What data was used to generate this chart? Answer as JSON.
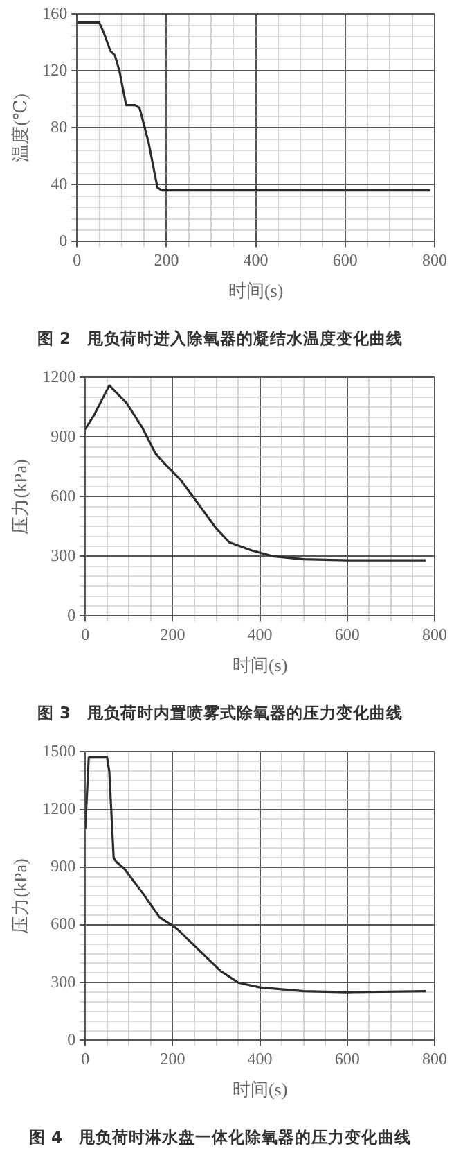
{
  "chart_data": [
    {
      "type": "line",
      "title": "图 2　甩负荷时进入除氧器的凝结水温度变化曲线",
      "xlabel": "时间(s)",
      "ylabel": "温度(℃)",
      "xlim": [
        0,
        800
      ],
      "ylim": [
        0,
        160
      ],
      "grid": true,
      "legend": false,
      "marker": "none",
      "line_style": "solid",
      "xticks": [
        0,
        {
          "value": 50,
          "label": null
        },
        {
          "value": 100,
          "label": null
        },
        {
          "value": 150,
          "label": null
        },
        200,
        {
          "value": 250,
          "label": null
        },
        {
          "value": 300,
          "label": null
        },
        {
          "value": 350,
          "label": null
        },
        400,
        {
          "value": 450,
          "label": null
        },
        {
          "value": 500,
          "label": null
        },
        {
          "value": 550,
          "label": null
        },
        600,
        {
          "value": 650,
          "label": null
        },
        {
          "value": 700,
          "label": null
        },
        {
          "value": 750,
          "label": null
        },
        800
      ],
      "yticks": [
        0,
        {
          "value": 8,
          "label": null
        },
        {
          "value": 16,
          "label": null
        },
        {
          "value": 24,
          "label": null
        },
        {
          "value": 32,
          "label": null
        },
        40,
        {
          "value": 48,
          "label": null
        },
        {
          "value": 56,
          "label": null
        },
        {
          "value": 64,
          "label": null
        },
        {
          "value": 72,
          "label": null
        },
        80,
        {
          "value": 88,
          "label": null
        },
        {
          "value": 96,
          "label": null
        },
        {
          "value": 104,
          "label": null
        },
        {
          "value": 112,
          "label": null
        },
        120,
        {
          "value": 128,
          "label": null
        },
        {
          "value": 136,
          "label": null
        },
        {
          "value": 144,
          "label": null
        },
        {
          "value": 152,
          "label": null
        },
        160
      ],
      "series": [
        {
          "color": "#2b2b2b",
          "x": [
            0,
            50,
            60,
            75,
            85,
            95,
            110,
            130,
            140,
            160,
            180,
            190,
            790
          ],
          "values": [
            154,
            154,
            147,
            134,
            131,
            120,
            96,
            96,
            94,
            70,
            38,
            36,
            36
          ]
        }
      ]
    },
    {
      "type": "line",
      "title": "图 3　甩负荷时内置喷雾式除氧器的压力变化曲线",
      "xlabel": "时间(s)",
      "ylabel": "压力(kPa)",
      "xlim": [
        0,
        800
      ],
      "ylim": [
        0,
        1200
      ],
      "grid": true,
      "legend": false,
      "marker": "none",
      "line_style": "solid",
      "xticks": [
        0,
        {
          "value": 50,
          "label": null
        },
        {
          "value": 100,
          "label": null
        },
        {
          "value": 150,
          "label": null
        },
        200,
        {
          "value": 250,
          "label": null
        },
        {
          "value": 300,
          "label": null
        },
        {
          "value": 350,
          "label": null
        },
        400,
        {
          "value": 450,
          "label": null
        },
        {
          "value": 500,
          "label": null
        },
        {
          "value": 550,
          "label": null
        },
        600,
        {
          "value": 650,
          "label": null
        },
        {
          "value": 700,
          "label": null
        },
        {
          "value": 750,
          "label": null
        },
        800
      ],
      "yticks": [
        0,
        {
          "value": 50,
          "label": null
        },
        {
          "value": 100,
          "label": null
        },
        {
          "value": 150,
          "label": null
        },
        {
          "value": 200,
          "label": null
        },
        {
          "value": 250,
          "label": null
        },
        300,
        {
          "value": 350,
          "label": null
        },
        {
          "value": 400,
          "label": null
        },
        {
          "value": 450,
          "label": null
        },
        {
          "value": 500,
          "label": null
        },
        {
          "value": 550,
          "label": null
        },
        600,
        {
          "value": 650,
          "label": null
        },
        {
          "value": 700,
          "label": null
        },
        {
          "value": 750,
          "label": null
        },
        {
          "value": 800,
          "label": null
        },
        {
          "value": 850,
          "label": null
        },
        900,
        {
          "value": 950,
          "label": null
        },
        {
          "value": 1000,
          "label": null
        },
        {
          "value": 1050,
          "label": null
        },
        {
          "value": 1100,
          "label": null
        },
        {
          "value": 1150,
          "label": null
        },
        1200
      ],
      "series": [
        {
          "color": "#2b2b2b",
          "x": [
            0,
            20,
            55,
            95,
            130,
            160,
            180,
            220,
            250,
            300,
            330,
            380,
            430,
            500,
            600,
            780
          ],
          "values": [
            940,
            1010,
            1160,
            1070,
            950,
            820,
            770,
            680,
            590,
            440,
            370,
            330,
            300,
            285,
            280,
            280
          ]
        }
      ]
    },
    {
      "type": "line",
      "title": "图 4　甩负荷时淋水盘一体化除氧器的压力变化曲线",
      "xlabel": "时间(s)",
      "ylabel": "压力(kPa)",
      "xlim": [
        0,
        800
      ],
      "ylim": [
        0,
        1500
      ],
      "grid": true,
      "legend": false,
      "marker": "none",
      "line_style": "solid",
      "xticks": [
        0,
        {
          "value": 50,
          "label": null
        },
        {
          "value": 100,
          "label": null
        },
        {
          "value": 150,
          "label": null
        },
        200,
        {
          "value": 250,
          "label": null
        },
        {
          "value": 300,
          "label": null
        },
        {
          "value": 350,
          "label": null
        },
        400,
        {
          "value": 450,
          "label": null
        },
        {
          "value": 500,
          "label": null
        },
        {
          "value": 550,
          "label": null
        },
        600,
        {
          "value": 650,
          "label": null
        },
        {
          "value": 700,
          "label": null
        },
        {
          "value": 750,
          "label": null
        },
        800
      ],
      "yticks": [
        0,
        {
          "value": 50,
          "label": null
        },
        {
          "value": 100,
          "label": null
        },
        {
          "value": 150,
          "label": null
        },
        {
          "value": 200,
          "label": null
        },
        {
          "value": 250,
          "label": null
        },
        300,
        {
          "value": 350,
          "label": null
        },
        {
          "value": 400,
          "label": null
        },
        {
          "value": 450,
          "label": null
        },
        {
          "value": 500,
          "label": null
        },
        {
          "value": 550,
          "label": null
        },
        600,
        {
          "value": 650,
          "label": null
        },
        {
          "value": 700,
          "label": null
        },
        {
          "value": 750,
          "label": null
        },
        {
          "value": 800,
          "label": null
        },
        {
          "value": 850,
          "label": null
        },
        900,
        {
          "value": 950,
          "label": null
        },
        {
          "value": 1000,
          "label": null
        },
        {
          "value": 1050,
          "label": null
        },
        {
          "value": 1100,
          "label": null
        },
        {
          "value": 1150,
          "label": null
        },
        1200,
        {
          "value": 1250,
          "label": null
        },
        {
          "value": 1300,
          "label": null
        },
        {
          "value": 1350,
          "label": null
        },
        {
          "value": 1400,
          "label": null
        },
        {
          "value": 1450,
          "label": null
        },
        1500
      ],
      "series": [
        {
          "color": "#2b2b2b",
          "x": [
            0,
            8,
            50,
            55,
            65,
            70,
            90,
            130,
            170,
            210,
            260,
            310,
            350,
            400,
            500,
            600,
            780
          ],
          "values": [
            1100,
            1470,
            1470,
            1400,
            950,
            930,
            890,
            770,
            640,
            580,
            470,
            360,
            300,
            275,
            255,
            250,
            255
          ]
        }
      ]
    }
  ]
}
